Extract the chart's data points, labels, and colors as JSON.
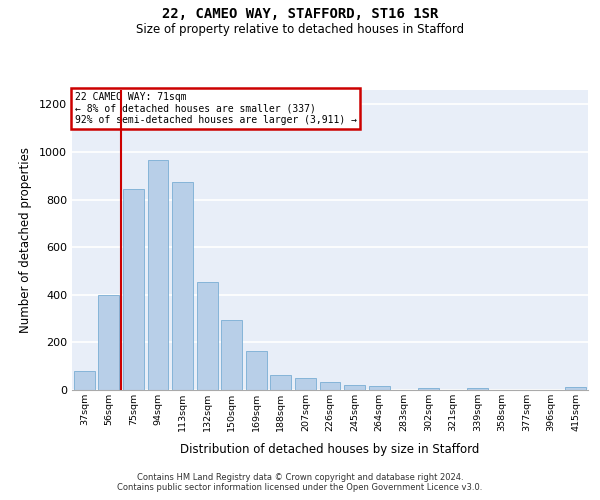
{
  "title_line1": "22, CAMEO WAY, STAFFORD, ST16 1SR",
  "title_line2": "Size of property relative to detached houses in Stafford",
  "xlabel": "Distribution of detached houses by size in Stafford",
  "ylabel": "Number of detached properties",
  "categories": [
    "37sqm",
    "56sqm",
    "75sqm",
    "94sqm",
    "113sqm",
    "132sqm",
    "150sqm",
    "169sqm",
    "188sqm",
    "207sqm",
    "226sqm",
    "245sqm",
    "264sqm",
    "283sqm",
    "302sqm",
    "321sqm",
    "339sqm",
    "358sqm",
    "377sqm",
    "396sqm",
    "415sqm"
  ],
  "values": [
    80,
    400,
    845,
    965,
    875,
    455,
    295,
    162,
    65,
    50,
    32,
    22,
    17,
    2,
    8,
    0,
    10,
    2,
    2,
    0,
    12
  ],
  "bar_color": "#b8cfe8",
  "bar_edge_color": "#7aaed4",
  "property_label": "22 CAMEO WAY: 71sqm",
  "annotation_line1": "← 8% of detached houses are smaller (337)",
  "annotation_line2": "92% of semi-detached houses are larger (3,911) →",
  "vline_color": "#cc0000",
  "annotation_box_color": "#cc0000",
  "ylim": [
    0,
    1260
  ],
  "yticks": [
    0,
    200,
    400,
    600,
    800,
    1000,
    1200
  ],
  "background_color": "#e8eef8",
  "grid_color": "#ffffff",
  "footer_line1": "Contains HM Land Registry data © Crown copyright and database right 2024.",
  "footer_line2": "Contains public sector information licensed under the Open Government Licence v3.0."
}
